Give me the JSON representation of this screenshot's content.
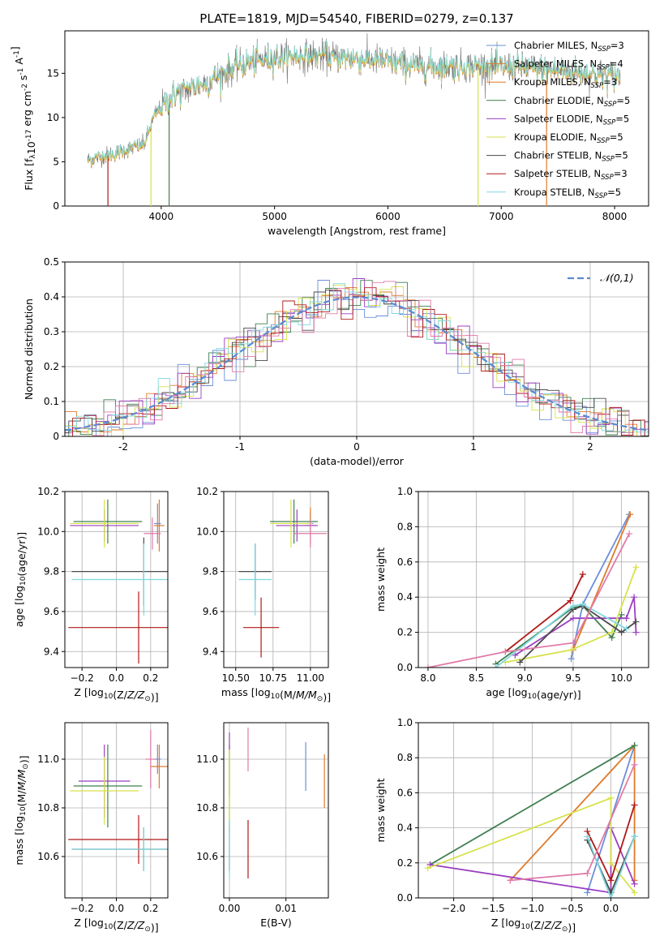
{
  "title": "PLATE=1819, MJD=54540, FIBERID=0279, z=0.137",
  "colors": {
    "c1": "#6a8fd8",
    "c2": "#e07a2a",
    "c3": "#3f7f4f",
    "c4": "#9b3fc0",
    "c5": "#d6e24a",
    "c6": "#4a4a4a",
    "c7": "#b01818",
    "c8": "#80d8e0",
    "c9": "#e07aa8",
    "gauss": "#5b8ad0",
    "spec": "#808080",
    "grid": "#b0b0b0"
  },
  "chart_data": [
    {
      "id": "spectrum",
      "type": "line",
      "xlabel": "wavelength [Angstrom, rest frame]",
      "ylabel": "Flux [f_λ10^-17 erg cm^-2 s^-1 A^-1]",
      "xlim": [
        3150,
        8300
      ],
      "ylim": [
        0,
        19.8
      ],
      "xticks": [
        4000,
        5000,
        6000,
        7000,
        8000
      ],
      "yticks": [
        0,
        5,
        10,
        15
      ],
      "legend_position": "upper right",
      "legend": [
        {
          "label": "Chabrier MILES, N",
          "sub": "SSP",
          "suffix": "=3",
          "color": "c1"
        },
        {
          "label": "Salpeter MILES, N",
          "sub": "SSP",
          "suffix": "=4",
          "color": "c2"
        },
        {
          "label": "Kroupa MILES, N",
          "sub": "SSP",
          "suffix": "=3",
          "color": "c2"
        },
        {
          "label": "Chabrier ELODIE, N",
          "sub": "SSP",
          "suffix": "=5",
          "color": "c3"
        },
        {
          "label": "Salpeter ELODIE, N",
          "sub": "SSP",
          "suffix": "=5",
          "color": "c4"
        },
        {
          "label": "Kroupa ELODIE, N",
          "sub": "SSP",
          "suffix": "=5",
          "color": "c5"
        },
        {
          "label": "Chabrier STELIB, N",
          "sub": "SSP",
          "suffix": "=5",
          "color": "c6"
        },
        {
          "label": "Salpeter STELIB, N",
          "sub": "SSP",
          "suffix": "=3",
          "color": "c7"
        },
        {
          "label": "Kroupa STELIB, N",
          "sub": "SSP",
          "suffix": "=5",
          "color": "c8"
        }
      ],
      "continuum": [
        [
          3350,
          5.2
        ],
        [
          3600,
          6.0
        ],
        [
          3850,
          7.0
        ],
        [
          3950,
          10.5
        ],
        [
          4100,
          12.5
        ],
        [
          4400,
          14.0
        ],
        [
          4700,
          16.0
        ],
        [
          5000,
          16.8
        ],
        [
          5300,
          17.0
        ],
        [
          5600,
          16.8
        ],
        [
          5900,
          16.5
        ],
        [
          6300,
          15.8
        ],
        [
          6700,
          15.8
        ],
        [
          7100,
          15.7
        ],
        [
          7500,
          15.3
        ],
        [
          8000,
          14.7
        ]
      ],
      "spectrum_range": [
        3350,
        8050
      ],
      "verticals": [
        {
          "x": 3530,
          "color": "c7"
        },
        {
          "x": 3910,
          "color": "c5"
        },
        {
          "x": 4070,
          "color": "c3"
        },
        {
          "x": 6795,
          "color": "c5"
        },
        {
          "x": 7400,
          "color": "c2"
        }
      ]
    },
    {
      "id": "residuals",
      "type": "histogram",
      "xlabel": "(data-model)/error",
      "ylabel": "Normed distribution",
      "xlim": [
        -2.5,
        2.5
      ],
      "ylim": [
        0,
        0.5
      ],
      "xticks": [
        -2,
        -1,
        0,
        1,
        2
      ],
      "yticks": [
        0,
        0.1,
        0.2,
        0.3,
        0.4,
        0.5
      ],
      "bin_width": 0.1,
      "legend": [
        {
          "label": "𝒩(0,1)",
          "color": "gauss"
        }
      ],
      "legend_position": "upper right"
    },
    {
      "id": "age_vs_Z",
      "type": "errorbar",
      "xlabel": "Z [log10(Z/Z⊙)]",
      "ylabel": "age  [log10(age/yr)]",
      "xlim": [
        -0.3,
        0.3
      ],
      "ylim": [
        9.32,
        10.2
      ],
      "xticks": [
        -0.2,
        0.0,
        0.2
      ],
      "xticklabels": [
        "−0.2",
        "0.0",
        "0.2"
      ],
      "yticks": [
        9.4,
        9.6,
        9.8,
        10.0,
        10.2
      ],
      "yticklabels": [
        "9.4",
        "9.6",
        "9.8",
        "10.0",
        "10.2"
      ],
      "points": [
        {
          "x": 0.24,
          "y": 10.04,
          "xe": 0.02,
          "ye": 0.1,
          "c": "c1"
        },
        {
          "x": 0.25,
          "y": 10.03,
          "xe": 0.03,
          "ye": 0.13,
          "c": "c2"
        },
        {
          "x": -0.05,
          "y": 10.05,
          "xe": 0.2,
          "ye": 0.11,
          "c": "c3"
        },
        {
          "x": -0.07,
          "y": 10.03,
          "xe": 0.2,
          "ye": 0.08,
          "c": "c4"
        },
        {
          "x": -0.07,
          "y": 10.04,
          "xe": 0.2,
          "ye": 0.12,
          "c": "c5"
        },
        {
          "x": 0.16,
          "y": 9.8,
          "xe": 0.42,
          "ye": 0.17,
          "c": "c6"
        },
        {
          "x": 0.13,
          "y": 9.52,
          "xe": 0.41,
          "ye": 0.18,
          "c": "c7"
        },
        {
          "x": 0.16,
          "y": 9.76,
          "xe": 0.42,
          "ye": 0.18,
          "c": "c8"
        },
        {
          "x": 0.21,
          "y": 9.99,
          "xe": 0.05,
          "ye": 0.08,
          "c": "c9"
        }
      ]
    },
    {
      "id": "age_vs_mass",
      "type": "errorbar",
      "xlabel": "mass [log10(M/M⊙)]",
      "ylabel": "",
      "xlim": [
        10.42,
        11.12
      ],
      "ylim": [
        9.32,
        10.2
      ],
      "xticks": [
        10.5,
        10.75,
        11.0
      ],
      "xticklabels": [
        "10.50",
        "10.75",
        "11.00"
      ],
      "yticks": [
        9.4,
        9.6,
        9.8,
        10.0,
        10.2
      ],
      "yticklabels": [
        "9.4",
        "9.6",
        "9.8",
        "10.0",
        "10.2"
      ],
      "points": [
        {
          "x": 11.0,
          "y": 10.04,
          "xe": 0.02,
          "ye": 0.06,
          "c": "c1"
        },
        {
          "x": 11.0,
          "y": 10.03,
          "xe": 0.04,
          "ye": 0.09,
          "c": "c2"
        },
        {
          "x": 10.89,
          "y": 10.05,
          "xe": 0.16,
          "ye": 0.11,
          "c": "c3"
        },
        {
          "x": 10.91,
          "y": 10.03,
          "xe": 0.14,
          "ye": 0.08,
          "c": "c4"
        },
        {
          "x": 10.87,
          "y": 10.04,
          "xe": 0.14,
          "ye": 0.12,
          "c": "c5"
        },
        {
          "x": 10.63,
          "y": 9.8,
          "xe": 0.11,
          "ye": 0.14,
          "c": "c6"
        },
        {
          "x": 10.67,
          "y": 9.52,
          "xe": 0.12,
          "ye": 0.15,
          "c": "c7"
        },
        {
          "x": 10.63,
          "y": 9.76,
          "xe": 0.11,
          "ye": 0.18,
          "c": "c8"
        },
        {
          "x": 11.0,
          "y": 9.99,
          "xe": 0.11,
          "ye": 0.07,
          "c": "c9"
        }
      ]
    },
    {
      "id": "weight_vs_age",
      "type": "line",
      "xlabel": "age  [log10(age/yr)]",
      "ylabel": "mass weight",
      "xlim": [
        7.9,
        10.28
      ],
      "ylim": [
        0,
        1.0
      ],
      "xticks": [
        8.0,
        8.5,
        9.0,
        9.5,
        10.0
      ],
      "xticklabels": [
        "8.0",
        "8.5",
        "9.0",
        "9.5",
        "10.0"
      ],
      "yticks": [
        0,
        0.2,
        0.4,
        0.6,
        0.8,
        1.0
      ],
      "yticklabels": [
        "0.0",
        "0.2",
        "0.4",
        "0.6",
        "0.8",
        "1.0"
      ],
      "series": [
        {
          "c": "c1",
          "pts": [
            [
              9.48,
              0.05
            ],
            [
              9.6,
              0.36
            ],
            [
              10.08,
              0.87
            ]
          ]
        },
        {
          "c": "c2",
          "pts": [
            [
              9.5,
              0.1
            ],
            [
              10.09,
              0.87
            ]
          ]
        },
        {
          "c": "c3",
          "pts": [
            [
              8.7,
              0.02
            ],
            [
              9.5,
              0.34
            ],
            [
              9.6,
              0.35
            ],
            [
              9.9,
              0.17
            ],
            [
              10.0,
              0.3
            ]
          ]
        },
        {
          "c": "c4",
          "pts": [
            [
              8.9,
              0.07
            ],
            [
              9.5,
              0.28
            ],
            [
              10.05,
              0.28
            ],
            [
              10.13,
              0.4
            ],
            [
              10.15,
              0.2
            ]
          ]
        },
        {
          "c": "c5",
          "pts": [
            [
              8.8,
              0.03
            ],
            [
              9.48,
              0.1
            ],
            [
              9.9,
              0.2
            ],
            [
              10.15,
              0.57
            ]
          ]
        },
        {
          "c": "c6",
          "pts": [
            [
              8.95,
              0.03
            ],
            [
              9.5,
              0.33
            ],
            [
              9.6,
              0.35
            ],
            [
              10.0,
              0.2
            ],
            [
              10.15,
              0.26
            ]
          ]
        },
        {
          "c": "c7",
          "pts": [
            [
              8.8,
              0.09
            ],
            [
              9.47,
              0.38
            ],
            [
              9.6,
              0.53
            ]
          ]
        },
        {
          "c": "c8",
          "pts": [
            [
              8.7,
              0.0
            ],
            [
              9.5,
              0.35
            ],
            [
              9.6,
              0.36
            ],
            [
              10.05,
              0.22
            ]
          ]
        },
        {
          "c": "c9",
          "pts": [
            [
              8.0,
              0.0
            ],
            [
              8.8,
              0.09
            ],
            [
              9.5,
              0.14
            ],
            [
              10.08,
              0.76
            ]
          ]
        }
      ]
    },
    {
      "id": "mass_vs_Z",
      "type": "errorbar",
      "xlabel": "Z [log10(Z/Z⊙)]",
      "ylabel": "mass [log10(M/M⊙)]",
      "xlim": [
        -0.3,
        0.3
      ],
      "ylim": [
        10.43,
        11.15
      ],
      "xticks": [
        -0.2,
        0.0,
        0.2
      ],
      "xticklabels": [
        "−0.2",
        "0.0",
        "0.2"
      ],
      "yticks": [
        10.6,
        10.8,
        11.0
      ],
      "yticklabels": [
        "10.6",
        "10.8",
        "11.0"
      ],
      "points": [
        {
          "x": 0.24,
          "y": 11.0,
          "xe": 0.02,
          "ye": 0.06,
          "c": "c1"
        },
        {
          "x": 0.25,
          "y": 10.97,
          "xe": 0.05,
          "ye": 0.09,
          "c": "c2"
        },
        {
          "x": -0.05,
          "y": 10.89,
          "xe": 0.2,
          "ye": 0.17,
          "c": "c3"
        },
        {
          "x": -0.07,
          "y": 10.91,
          "xe": 0.15,
          "ye": 0.15,
          "c": "c4"
        },
        {
          "x": -0.07,
          "y": 10.87,
          "xe": 0.2,
          "ye": 0.14,
          "c": "c5"
        },
        {
          "x": 0.16,
          "y": 10.63,
          "xe": 0.42,
          "ye": 0.09,
          "c": "c6"
        },
        {
          "x": 0.13,
          "y": 10.67,
          "xe": 0.41,
          "ye": 0.1,
          "c": "c7"
        },
        {
          "x": 0.16,
          "y": 10.63,
          "xe": 0.42,
          "ye": 0.09,
          "c": "c8"
        },
        {
          "x": 0.2,
          "y": 11.0,
          "xe": 0.03,
          "ye": 0.12,
          "c": "c9"
        }
      ]
    },
    {
      "id": "mass_vs_ebv",
      "type": "errorbar",
      "xlabel": "E(B-V)",
      "ylabel": "",
      "xlim": [
        -0.001,
        0.0175
      ],
      "ylim": [
        10.43,
        11.15
      ],
      "xticks": [
        0,
        0.01
      ],
      "xticklabels": [
        "0.00",
        "0.01"
      ],
      "yticks": [
        10.6,
        10.8,
        11.0
      ],
      "yticklabels": [
        "10.6",
        "10.8",
        "11.0"
      ],
      "points": [
        {
          "x": 0.0135,
          "y": 10.97,
          "xe": 0,
          "ye": 0.1,
          "c": "c1"
        },
        {
          "x": 0.0168,
          "y": 10.91,
          "xe": 0,
          "ye": 0.11,
          "c": "c2"
        },
        {
          "x": 0.0,
          "y": 10.89,
          "xe": 0,
          "ye": 0.17,
          "c": "c3"
        },
        {
          "x": 0.0,
          "y": 10.98,
          "xe": 0,
          "ye": 0.13,
          "c": "c4"
        },
        {
          "x": 0.0,
          "y": 10.87,
          "xe": 0,
          "ye": 0.17,
          "c": "c5"
        },
        {
          "x": 0.0,
          "y": 10.63,
          "xe": 0,
          "ye": 0.09,
          "c": "c6"
        },
        {
          "x": 0.0033,
          "y": 10.63,
          "xe": 0,
          "ye": 0.12,
          "c": "c7"
        },
        {
          "x": 0.0,
          "y": 10.63,
          "xe": 0,
          "ye": 0.12,
          "c": "c8"
        },
        {
          "x": 0.0033,
          "y": 11.04,
          "xe": 0,
          "ye": 0.09,
          "c": "c9"
        }
      ]
    },
    {
      "id": "weight_vs_Z",
      "type": "line",
      "xlabel": "Z [log10(Z/Z⊙)]",
      "ylabel": "mass weight",
      "xlim": [
        -2.45,
        0.48
      ],
      "ylim": [
        0,
        1.0
      ],
      "xticks": [
        -2.0,
        -1.5,
        -1.0,
        -0.5,
        0.0
      ],
      "xticklabels": [
        "−2.0",
        "−1.5",
        "−1.0",
        "−0.5",
        "0.0"
      ],
      "yticks": [
        0,
        0.2,
        0.4,
        0.6,
        0.8,
        1.0
      ],
      "yticklabels": [
        "0.0",
        "0.2",
        "0.4",
        "0.6",
        "0.8",
        "1.0"
      ],
      "series": [
        {
          "c": "c1",
          "pts": [
            [
              -0.3,
              0.03
            ],
            [
              0.3,
              0.87
            ]
          ]
        },
        {
          "c": "c2",
          "pts": [
            [
              -1.28,
              0.1
            ],
            [
              0.3,
              0.87
            ],
            [
              0.3,
              0.1
            ]
          ]
        },
        {
          "c": "c3",
          "pts": [
            [
              -2.3,
              0.19
            ],
            [
              0.3,
              0.87
            ]
          ]
        },
        {
          "c": "c4",
          "pts": [
            [
              -2.3,
              0.19
            ],
            [
              0.0,
              0.03
            ],
            [
              0.0,
              0.4
            ],
            [
              0.3,
              0.08
            ]
          ]
        },
        {
          "c": "c5",
          "pts": [
            [
              -2.33,
              0.17
            ],
            [
              0.0,
              0.57
            ],
            [
              0.0,
              0.2
            ],
            [
              0.3,
              0.03
            ]
          ]
        },
        {
          "c": "c6",
          "pts": [
            [
              -0.3,
              0.33
            ],
            [
              0.0,
              0.03
            ],
            [
              0.3,
              0.35
            ]
          ]
        },
        {
          "c": "c7",
          "pts": [
            [
              -0.3,
              0.38
            ],
            [
              0.0,
              0.1
            ],
            [
              0.3,
              0.53
            ]
          ]
        },
        {
          "c": "c8",
          "pts": [
            [
              -0.3,
              0.35
            ],
            [
              0.0,
              0.0
            ],
            [
              0.3,
              0.35
            ]
          ]
        },
        {
          "c": "c9",
          "pts": [
            [
              -1.28,
              0.1
            ],
            [
              -0.3,
              0.14
            ],
            [
              0.3,
              0.76
            ]
          ]
        }
      ]
    }
  ]
}
